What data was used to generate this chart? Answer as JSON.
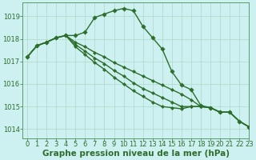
{
  "background_color": "#cdf0f0",
  "grid_color": "#b0d8c8",
  "line_color": "#2d6e2d",
  "marker_color": "#2d6e2d",
  "xlabel": "Graphe pression niveau de la mer (hPa)",
  "ylim": [
    1013.6,
    1019.6
  ],
  "xlim": [
    -0.5,
    23
  ],
  "yticks": [
    1014,
    1015,
    1016,
    1017,
    1018,
    1019
  ],
  "xticks": [
    0,
    1,
    2,
    3,
    4,
    5,
    6,
    7,
    8,
    9,
    10,
    11,
    12,
    13,
    14,
    15,
    16,
    17,
    18,
    19,
    20,
    21,
    22,
    23
  ],
  "series": [
    [
      1017.2,
      1017.7,
      1017.85,
      1018.05,
      1018.15,
      1018.15,
      1018.3,
      1018.95,
      1019.1,
      1019.25,
      1019.35,
      1019.25,
      1018.55,
      1018.05,
      1017.55,
      1016.55,
      1015.95,
      1015.75,
      1015.05,
      1014.95,
      1014.75,
      1014.75,
      1014.35,
      1014.1
    ],
    [
      1017.2,
      1017.7,
      1017.85,
      1018.05,
      1018.15,
      1017.85,
      1017.65,
      1017.4,
      1017.2,
      1016.95,
      1016.75,
      1016.55,
      1016.35,
      1016.15,
      1015.95,
      1015.75,
      1015.55,
      1015.3,
      1015.0,
      1014.95,
      1014.75,
      1014.75,
      1014.35,
      1014.1
    ],
    [
      1017.2,
      1017.7,
      1017.85,
      1018.05,
      1018.15,
      1017.75,
      1017.45,
      1017.15,
      1016.9,
      1016.6,
      1016.35,
      1016.05,
      1015.8,
      1015.6,
      1015.4,
      1015.2,
      1015.0,
      1015.0,
      1015.0,
      1014.95,
      1014.75,
      1014.75,
      1014.35,
      1014.1
    ],
    [
      1017.2,
      1017.7,
      1017.85,
      1018.05,
      1018.15,
      1017.65,
      1017.3,
      1016.95,
      1016.65,
      1016.3,
      1016.0,
      1015.7,
      1015.45,
      1015.2,
      1015.0,
      1014.95,
      1014.9,
      1015.0,
      1015.0,
      1014.95,
      1014.75,
      1014.75,
      1014.35,
      1014.1
    ]
  ],
  "title_fontsize": 7.5,
  "tick_fontsize": 6.0,
  "line_width": 1.0
}
